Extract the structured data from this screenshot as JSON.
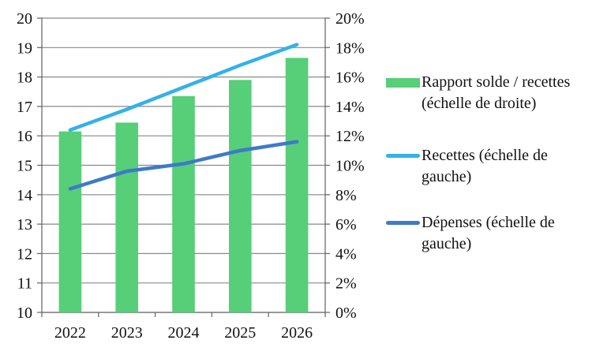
{
  "chart_data": {
    "type": "combo-bar-line",
    "title": "",
    "categories": [
      "2022",
      "2023",
      "2024",
      "2025",
      "2026"
    ],
    "left_axis": {
      "min": 10,
      "max": 20,
      "tick_step": 1,
      "labels_top_to_bottom": [
        "20",
        "19",
        "18",
        "17",
        "16",
        "15",
        "14",
        "13",
        "12",
        "11",
        "10"
      ]
    },
    "right_axis": {
      "min": 0,
      "max": 20,
      "tick_step": 2,
      "unit": "%",
      "labels_top_to_bottom": [
        "20%",
        "18%",
        "16%",
        "14%",
        "12%",
        "10%",
        "8%",
        "6%",
        "4%",
        "2%",
        "0%"
      ]
    },
    "grid": true,
    "legend_position": "right",
    "series": [
      {
        "name": "Rapport solde / recettes (échelle de droite)",
        "type": "bar",
        "axis": "right",
        "color": "#57ce78",
        "values": [
          12.3,
          12.9,
          14.7,
          15.8,
          17.3
        ]
      },
      {
        "name": "Recettes (échelle de gauche)",
        "type": "line",
        "axis": "left",
        "color": "#34b1e9",
        "values": [
          16.2,
          16.9,
          17.65,
          18.4,
          19.1
        ]
      },
      {
        "name": "Dépenses (échelle de gauche)",
        "type": "line",
        "axis": "left",
        "color": "#3d7ac9",
        "values": [
          14.2,
          14.8,
          15.05,
          15.5,
          15.8
        ]
      }
    ]
  },
  "colors": {
    "gridline": "#898989",
    "axis_line": "#6e6e6e",
    "text": "#111111",
    "background": "#ffffff"
  }
}
